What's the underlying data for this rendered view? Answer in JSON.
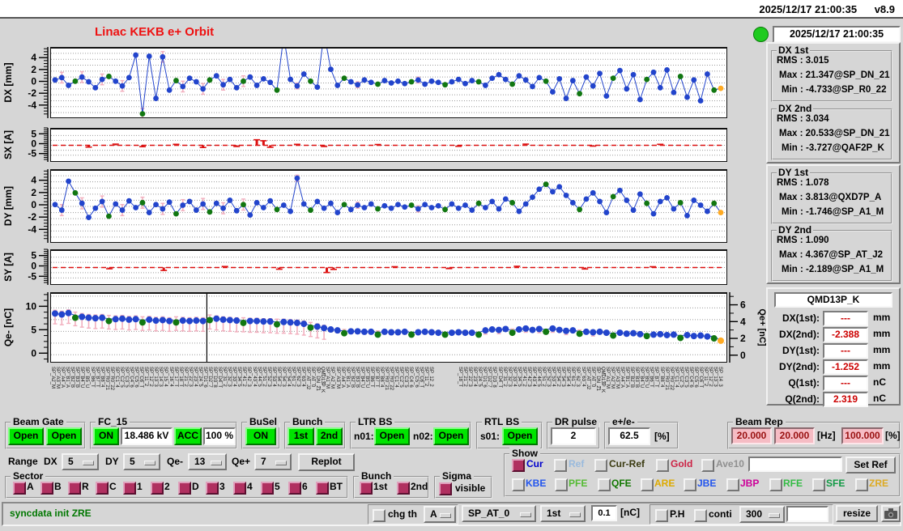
{
  "titlebar": {
    "datetime": "2025/12/17 21:00:35",
    "version": "v8.9"
  },
  "header": {
    "title": "Linac KEKB e+ Orbit",
    "timestamp": "2025/12/17 21:00:35"
  },
  "stats": {
    "groups": [
      {
        "title": "DX 1st",
        "rms": "RMS :  3.015",
        "max": "Max :  21.347@SP_DN_21",
        "min": "Min :  -4.733@SP_R0_22"
      },
      {
        "title": "DX 2nd",
        "rms": "RMS :  3.034",
        "max": "Max :  20.533@SP_DN_21",
        "min": "Min :  -3.727@QAF2P_K"
      },
      {
        "title": "DY 1st",
        "rms": "RMS :  1.078",
        "max": "Max :  3.813@QXD7P_A",
        "min": "Min :  -1.746@SP_A1_M"
      },
      {
        "title": "DY 2nd",
        "rms": "RMS :  1.090",
        "max": "Max :  4.367@SP_AT_J2",
        "min": "Min :  -2.189@SP_A1_M"
      }
    ]
  },
  "qmd": {
    "title": "QMD13P_K",
    "rows": [
      {
        "label": "DX(1st):",
        "value": "---",
        "unit": "mm"
      },
      {
        "label": "DX(2nd):",
        "value": "-2.388",
        "unit": "mm"
      },
      {
        "label": "DY(1st):",
        "value": "---",
        "unit": "mm"
      },
      {
        "label": "DY(2nd):",
        "value": "-1.252",
        "unit": "mm"
      },
      {
        "label": "Q(1st):",
        "value": "---",
        "unit": "nC"
      },
      {
        "label": "Q(2nd):",
        "value": "2.319",
        "unit": "nC"
      }
    ]
  },
  "controls": {
    "beam_gate": {
      "label": "Beam Gate",
      "b1": "Open",
      "b2": "Open"
    },
    "fc15": {
      "label": "FC_15",
      "on": "ON",
      "kv": "18.486 kV",
      "acc": "ACC",
      "pct": "100 %"
    },
    "busel": {
      "label": "BuSel",
      "on": "ON"
    },
    "bunch": {
      "label": "Bunch",
      "b1": "1st",
      "b2": "2nd"
    },
    "ltr_bs": {
      "label": "LTR BS",
      "n01_label": "n01:",
      "n01": "Open",
      "n02_label": "n02:",
      "n02": "Open"
    },
    "rtl_bs": {
      "label": "RTL BS",
      "s01_label": "s01:",
      "s01": "Open"
    },
    "dr_pulse": {
      "label": "DR pulse",
      "value": "2"
    },
    "eratio": {
      "label": "e+/e-",
      "value": "62.5",
      "unit": "[%]"
    },
    "beam_rep": {
      "label": "Beam Rep",
      "v1": "20.000",
      "v2": "20.000",
      "hz": "[Hz]",
      "v3": "100.000",
      "pct": "[%]"
    }
  },
  "range_row": {
    "range": "Range",
    "dx_label": "DX",
    "dx": "5",
    "dy_label": "DY",
    "dy": "5",
    "qem_label": "Qe-",
    "qem": "13",
    "qep_label": "Qe+",
    "qep": "7",
    "replot": "Replot"
  },
  "show": {
    "label": "Show",
    "set_ref": "Set Ref",
    "row1": [
      {
        "label": "Cur",
        "checked": true,
        "color": "#0000cc"
      },
      {
        "label": "Ref",
        "checked": false,
        "color": "#99badd"
      },
      {
        "label": "Cur-Ref",
        "checked": false,
        "color": "#3a3a10"
      },
      {
        "label": "Gold",
        "checked": false,
        "color": "#cc2244"
      },
      {
        "label": "Ave10",
        "checked": false,
        "color": "#909090"
      }
    ],
    "row2": [
      {
        "label": "KBE",
        "color": "#2255ee"
      },
      {
        "label": "PFE",
        "color": "#55bb33"
      },
      {
        "label": "QFE",
        "color": "#117700"
      },
      {
        "label": "ARE",
        "color": "#ddaa00"
      },
      {
        "label": "JBE",
        "color": "#2255ee"
      },
      {
        "label": "JBP",
        "color": "#cc0099"
      },
      {
        "label": "RFE",
        "color": "#33bb44"
      },
      {
        "label": "SFE",
        "color": "#119944"
      },
      {
        "label": "ZRE",
        "color": "#ddaa22"
      }
    ]
  },
  "sector": {
    "label": "Sector",
    "items": [
      "A",
      "B",
      "R",
      "C",
      "1",
      "2",
      "D",
      "3",
      "4",
      "5",
      "6",
      "BT"
    ]
  },
  "bunch_sel": {
    "label": "Bunch",
    "items": [
      "1st",
      "2nd"
    ]
  },
  "sigma": {
    "label": "Sigma",
    "item": "visible"
  },
  "statusbar": {
    "message": "syncdata init ZRE",
    "chg_th": "chg th",
    "th_sel": "A",
    "bpm_sel": "SP_AT_0",
    "bunch_sel": "1st",
    "thresh": "0.1",
    "thresh_unit": "[nC]",
    "ph": "P.H",
    "conti": "conti",
    "n_sel": "300",
    "resize": "resize"
  },
  "colors": {
    "point_blue": "#2244cc",
    "point_green": "#117711",
    "point_orange": "#ffaa22",
    "error_pink": "#f2afbe",
    "red_series": "#dd1111",
    "grid_gray": "#9a9a9a",
    "accent_green": "#00e400",
    "title_red": "#ee1111",
    "pink_field": "#f6bcc4"
  },
  "chart_data": [
    {
      "type": "scatter",
      "name": "DX",
      "ylabel": "DX [mm]",
      "ylim": [
        -5.8,
        5.8
      ],
      "yticks": [
        4,
        2,
        0,
        -2,
        -4
      ],
      "grid": 1,
      "last_orange": true,
      "values": [
        0.5,
        0.9,
        -0.4,
        0.3,
        1.0,
        0.2,
        -0.8,
        0.6,
        1.1,
        0.3,
        -0.5,
        0.9,
        4.7,
        -5.2,
        4.5,
        -2.6,
        4.4,
        -1.2,
        0.4,
        -0.6,
        0.8,
        0.2,
        -1.0,
        0.5,
        1.2,
        -0.3,
        0.6,
        -0.8,
        0.3,
        1.0,
        -0.4,
        0.7,
        0.1,
        -1.2,
        8.0,
        0.6,
        -0.5,
        1.5,
        0.3,
        -0.7,
        8.5,
        2.3,
        -0.4,
        0.8,
        0.2,
        -0.3,
        0.5,
        0.1,
        -0.2,
        0.4,
        0.0,
        0.3,
        -0.1,
        0.2,
        0.5,
        -0.2,
        0.3,
        0.1,
        -0.3,
        0.2,
        0.6,
        -0.1,
        0.4,
        0.2,
        -0.4,
        0.8,
        1.4,
        0.6,
        -0.2,
        1.2,
        0.5,
        -0.6,
        0.9,
        0.3,
        -1.5,
        0.7,
        -2.6,
        0.4,
        -1.8,
        1.0,
        -0.5,
        1.6,
        -2.2,
        0.8,
        2.1,
        -1.0,
        1.4,
        -2.8,
        0.6,
        1.8,
        -0.8,
        2.2,
        -1.6,
        1.1,
        -2.4,
        0.5,
        -3.0,
        1.5,
        -1.2,
        -0.9
      ]
    },
    {
      "type": "steps",
      "name": "SX",
      "ylabel": "SX [A]",
      "ylim": [
        -8,
        8
      ],
      "yticks": [
        5,
        0,
        -5
      ],
      "grid": 2.5,
      "values": [
        0,
        0,
        0,
        0,
        0,
        -0.9,
        0,
        0,
        0,
        0.6,
        0,
        0,
        0,
        -0.7,
        0,
        0,
        0,
        0,
        0.5,
        0,
        0,
        0,
        -1.1,
        0,
        0,
        0,
        0,
        -0.6,
        0,
        0,
        2.8,
        2.3,
        -1.0,
        0,
        0,
        0,
        0.5,
        0,
        0,
        0,
        -0.6,
        0,
        0,
        0,
        0,
        0,
        0,
        0,
        0.4,
        0,
        0,
        0,
        0,
        0,
        0,
        0,
        0,
        0,
        0,
        0,
        -0.5,
        0,
        0,
        0,
        0,
        0,
        0,
        0,
        0,
        0,
        0.6,
        0,
        0,
        0,
        0,
        0,
        0,
        0,
        0,
        0,
        -0.4,
        0,
        0,
        0,
        0,
        0,
        0,
        0,
        0,
        0,
        0.5,
        0,
        0,
        0,
        0,
        0,
        0,
        0,
        0,
        0
      ]
    },
    {
      "type": "scatter",
      "name": "DY",
      "ylabel": "DY [mm]",
      "ylim": [
        -5.8,
        5.8
      ],
      "yticks": [
        4,
        2,
        0,
        -2,
        -4
      ],
      "grid": 1,
      "last_orange": true,
      "values": [
        0.3,
        -0.6,
        4.1,
        2.2,
        0.5,
        -1.8,
        -0.3,
        0.8,
        -1.6,
        0.4,
        -0.6,
        0.9,
        -0.2,
        0.6,
        -1.0,
        0.3,
        -0.4,
        0.7,
        -1.2,
        0.2,
        0.8,
        -0.6,
        0.4,
        -0.9,
        0.5,
        -0.3,
        1.0,
        -0.7,
        0.3,
        -1.4,
        0.6,
        -0.2,
        0.9,
        -0.5,
        0.2,
        -0.8,
        4.6,
        0.4,
        -0.6,
        0.8,
        -0.3,
        0.5,
        -1.0,
        0.3,
        -0.5,
        0.2,
        -0.2,
        0.4,
        -0.4,
        0.1,
        -0.3,
        0.3,
        -0.1,
        0.2,
        -0.4,
        0.3,
        -0.2,
        0.1,
        -0.5,
        0.4,
        -0.3,
        0.2,
        -0.6,
        0.5,
        -0.2,
        0.8,
        -0.4,
        1.2,
        0.6,
        -0.8,
        0.4,
        1.5,
        2.8,
        3.6,
        2.4,
        3.2,
        1.8,
        0.6,
        -0.5,
        1.2,
        2.2,
        0.8,
        -1.0,
        1.6,
        2.6,
        1.0,
        -0.6,
        2.0,
        0.5,
        -1.2,
        0.8,
        1.4,
        -0.4,
        0.6,
        -1.5,
        1.0,
        0.2,
        -0.8,
        0.5,
        -1.0
      ]
    },
    {
      "type": "steps",
      "name": "SY",
      "ylabel": "SY [A]",
      "ylim": [
        -8,
        8
      ],
      "yticks": [
        5,
        0,
        -5
      ],
      "grid": 2.5,
      "values": [
        0,
        0,
        0,
        0,
        0,
        0,
        0,
        0,
        -0.6,
        0,
        0,
        0,
        0,
        0,
        0,
        0,
        -1.4,
        0,
        0,
        0,
        0,
        0,
        0,
        0,
        0,
        0.5,
        0,
        0,
        0,
        0,
        0,
        0,
        0,
        -0.8,
        0,
        0,
        0,
        0,
        0,
        0,
        -2.4,
        -0.9,
        0,
        0,
        0,
        0,
        0,
        0,
        0,
        0,
        0.4,
        0,
        0,
        0,
        0,
        0,
        0,
        0,
        -0.5,
        0,
        0,
        0,
        0,
        0,
        0,
        0,
        0,
        0,
        0.6,
        0,
        0,
        0,
        0,
        0,
        0,
        0,
        0,
        0,
        -0.7,
        0,
        0,
        0,
        0,
        0,
        0,
        0,
        0,
        0,
        0.4,
        0,
        0,
        0,
        0,
        0,
        0,
        0,
        0,
        0,
        0
      ]
    },
    {
      "type": "scatter",
      "name": "Qe-",
      "ylabel": "Qe- [nC]",
      "ylim": [
        -1.5,
        13
      ],
      "yticks": [
        10,
        5,
        0
      ],
      "grid": 2.5,
      "last_orange": true,
      "vline": 0.228,
      "green_offset": -0.5,
      "right": {
        "label": "Qe+ [nC]",
        "ylim": [
          -0.6,
          7.5
        ],
        "yticks": [
          6,
          4,
          2,
          0
        ]
      },
      "values": [
        8.8,
        8.6,
        8.9,
        8.4,
        8.1,
        7.9,
        7.8,
        7.9,
        7.7,
        7.6,
        7.7,
        7.5,
        7.6,
        7.4,
        7.5,
        7.3,
        7.4,
        7.2,
        7.4,
        7.3,
        7.2,
        7.3,
        7.2,
        7.9,
        7.7,
        7.5,
        7.4,
        7.3,
        7.3,
        7.2,
        7.2,
        7.1,
        7.1,
        7.0,
        7.0,
        6.9,
        6.8,
        6.6,
        6.3,
        6.0,
        5.7,
        5.4,
        5.2,
        5.1,
        5.0,
        5.0,
        4.9,
        4.9,
        4.8,
        4.9,
        4.8,
        4.8,
        4.9,
        4.8,
        4.8,
        4.9,
        4.8,
        4.7,
        4.8,
        4.7,
        4.8,
        4.7,
        4.7,
        4.8,
        5.2,
        5.4,
        5.3,
        5.5,
        5.2,
        5.4,
        5.6,
        5.3,
        5.5,
        5.4,
        5.6,
        5.3,
        5.1,
        5.2,
        5.0,
        4.9,
        4.8,
        4.9,
        4.7,
        4.6,
        4.7,
        4.5,
        4.6,
        4.4,
        4.5,
        4.3,
        4.4,
        4.2,
        4.3,
        4.1,
        4.2,
        4.0,
        4.1,
        3.9,
        4.0,
        3.0
      ]
    }
  ],
  "bpm_names": [
    "SP_A1_M",
    "SP_A2_M",
    "SP_A3_M",
    "SP_A4_A",
    "SP_B1_A",
    "SP_B2_B",
    "SP_B3_B",
    "SP_B4_U",
    "SP_B5_U",
    "SP_B6_T",
    "SP_B7_T",
    "SP_B8_4",
    "SP_R0_21",
    "SP_R0_22",
    "SP_C1_4",
    "SP_C2_5",
    "SP_C3_5",
    "SP_C4_6",
    "SP_C5_6",
    "SP_C6_T",
    "SP_11_2",
    "SP_12_2",
    "SP_13_3",
    "SP_14_3",
    "SP_15_4",
    "SP_16_4",
    "SP_17_T",
    "SP_18_T",
    "SP_21_2",
    "SP_22_3",
    "SP_23_4",
    "SP_24_5",
    "SP_D1_6",
    "SP_D2_7",
    "SP_D3_8",
    "SP_D4_T",
    "SP_31_2",
    "SP_32_3",
    "SP_33_4",
    "SP_34_5",
    "SP_41_2",
    "SP_42_3",
    "SP_43_4",
    "SP_44_5",
    "SP_51_2",
    "SP_52_3",
    "SP_53_4",
    "SP_54_2",
    "SP_54_3",
    "SP_54_4",
    "SP_61_2",
    "SP_62_3",
    "SP_63_4",
    "SP_AT_J2",
    "SP_AT_0",
    "SP_DN_21",
    "QMD13P_K"
  ]
}
